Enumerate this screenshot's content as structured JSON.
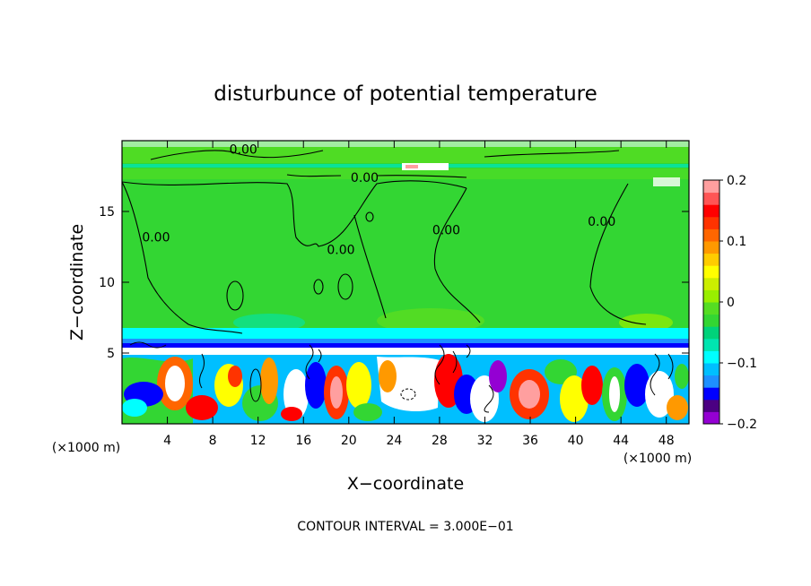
{
  "chart_data": {
    "type": "heatmap",
    "title": "disturbunce of potential temperature",
    "xlabel": "X−coordinate",
    "ylabel": "Z−coordinate",
    "x_unit_left": "(×1000 m)",
    "x_unit_right": "(×1000 m)",
    "xlim": [
      0,
      50
    ],
    "ylim": [
      0,
      20
    ],
    "x_ticks": [
      4,
      8,
      12,
      16,
      20,
      24,
      28,
      32,
      36,
      40,
      44,
      48
    ],
    "y_ticks": [
      5,
      10,
      15
    ],
    "color_range": [
      -0.2,
      0.2
    ],
    "colorbar_ticks": [
      {
        "value": 0.2,
        "label": "0.2"
      },
      {
        "value": 0.1,
        "label": "0.1"
      },
      {
        "value": 0,
        "label": "0"
      },
      {
        "value": -0.1,
        "label": "−0.1"
      },
      {
        "value": -0.2,
        "label": "−0.2"
      }
    ],
    "colorbar_colors": [
      "#9400d3",
      "#4b0082",
      "#0000ff",
      "#1e90ff",
      "#00bfff",
      "#00ffff",
      "#00e5b0",
      "#00d27a",
      "#33d633",
      "#55dd22",
      "#99ee00",
      "#ccee00",
      "#ffff00",
      "#ffcc00",
      "#ff9900",
      "#ff6600",
      "#ff3300",
      "#ff0000",
      "#ff5555",
      "#ff9f9f"
    ],
    "contour_labels": [
      {
        "text": "0.00",
        "x": 21.4,
        "y": 17.4
      },
      {
        "text": "0.00",
        "x": 19.3,
        "y": 12.3
      },
      {
        "text": "0.00",
        "x": 3.0,
        "y": 13.2
      },
      {
        "text": "0.00",
        "x": 28.6,
        "y": 13.7
      },
      {
        "text": "0.00",
        "x": 42.3,
        "y": 14.3
      },
      {
        "text": "0.00",
        "x": 10.7,
        "y": 19.4
      }
    ],
    "footnote": "CONTOUR INTERVAL = 3.000E−01"
  }
}
